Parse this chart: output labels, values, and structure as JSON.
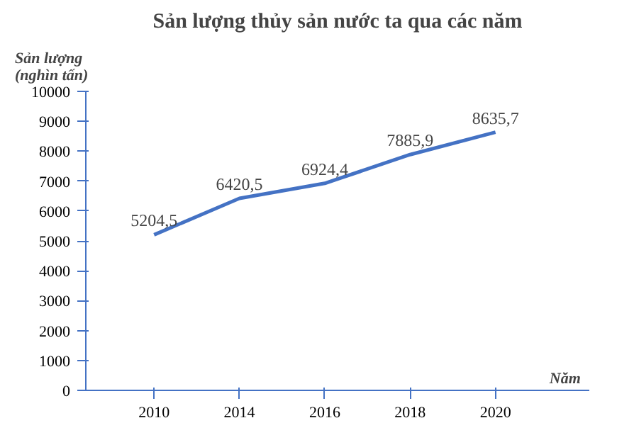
{
  "chart_data": {
    "type": "line",
    "title": "Sản lượng thủy sản nước ta qua các năm",
    "xlabel": "Năm",
    "ylabel": "Sản lượng (nghìn tấn)",
    "categories": [
      "2010",
      "2014",
      "2016",
      "2018",
      "2020"
    ],
    "series": [
      {
        "color": "#4472c4",
        "values": [
          5204.5,
          6420.5,
          6924.4,
          7885.9,
          8635.7
        ],
        "value_labels": [
          "5204,5",
          "6420,5",
          "6924,4",
          "7885,9",
          "8635,7"
        ]
      }
    ],
    "ylim": [
      0,
      10000
    ],
    "yticks": [
      0,
      1000,
      2000,
      3000,
      4000,
      5000,
      6000,
      7000,
      8000,
      9000,
      10000
    ],
    "grid": false,
    "marker": "none",
    "line_style": "solid"
  }
}
